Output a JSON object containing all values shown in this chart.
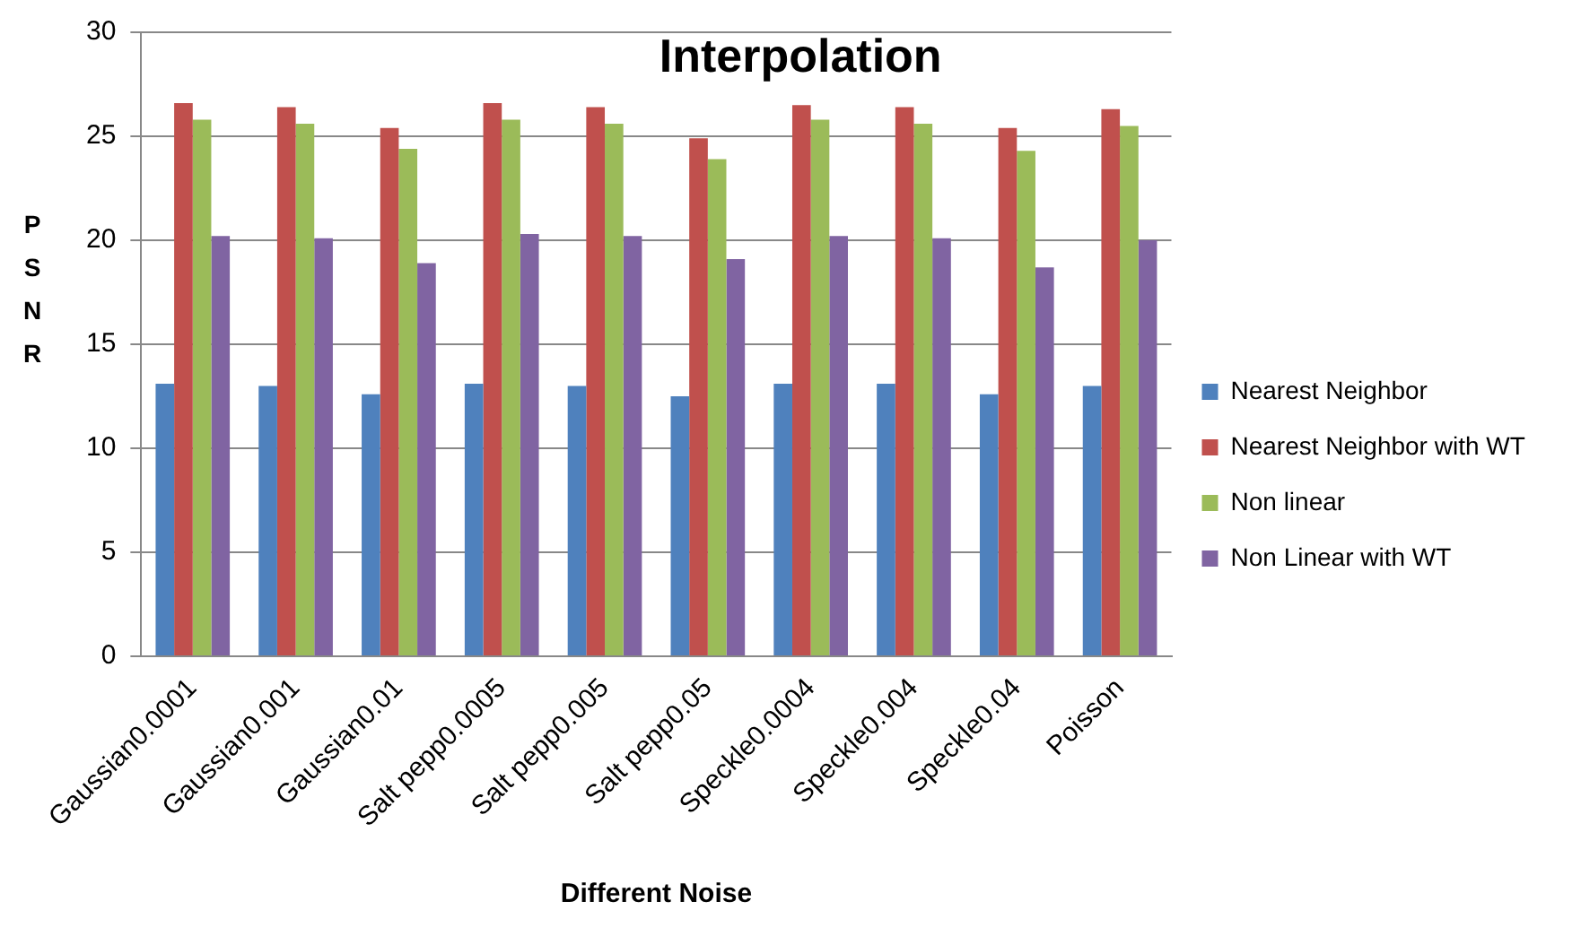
{
  "chart_data": {
    "type": "bar",
    "title": "Interpolation",
    "xlabel": "Different Noise",
    "ylabel": "PSNR",
    "categories": [
      "Gaussian0.0001",
      "Gaussian0.001",
      "Gaussian0.01",
      "Salt pepp0.0005",
      "Salt pepp0.005",
      "Salt pepp0.05",
      "Speckle0.0004",
      "Speckle0.004",
      "Speckle0.04",
      "Poisson"
    ],
    "series": [
      {
        "name": "Nearest Neighbor",
        "color": "#4f81bd",
        "values": [
          13.1,
          13.0,
          12.6,
          13.1,
          13.0,
          12.5,
          13.1,
          13.1,
          12.6,
          13.0
        ]
      },
      {
        "name": "Nearest Neighbor with WT",
        "color": "#c0504d",
        "values": [
          26.6,
          26.4,
          25.4,
          26.6,
          26.4,
          24.9,
          26.5,
          26.4,
          25.4,
          26.3
        ]
      },
      {
        "name": "Non linear",
        "color": "#9bbb59",
        "values": [
          25.8,
          25.6,
          24.4,
          25.8,
          25.6,
          23.9,
          25.8,
          25.6,
          24.3,
          25.5
        ]
      },
      {
        "name": "Non Linear with WT",
        "color": "#8064a2",
        "values": [
          20.2,
          20.1,
          18.9,
          20.3,
          20.2,
          19.1,
          20.2,
          20.1,
          18.7,
          20.0
        ]
      }
    ],
    "ylim": [
      0,
      30
    ],
    "yticks": [
      0,
      5,
      10,
      15,
      20,
      25,
      30
    ],
    "grid": "y",
    "legend": "right"
  }
}
